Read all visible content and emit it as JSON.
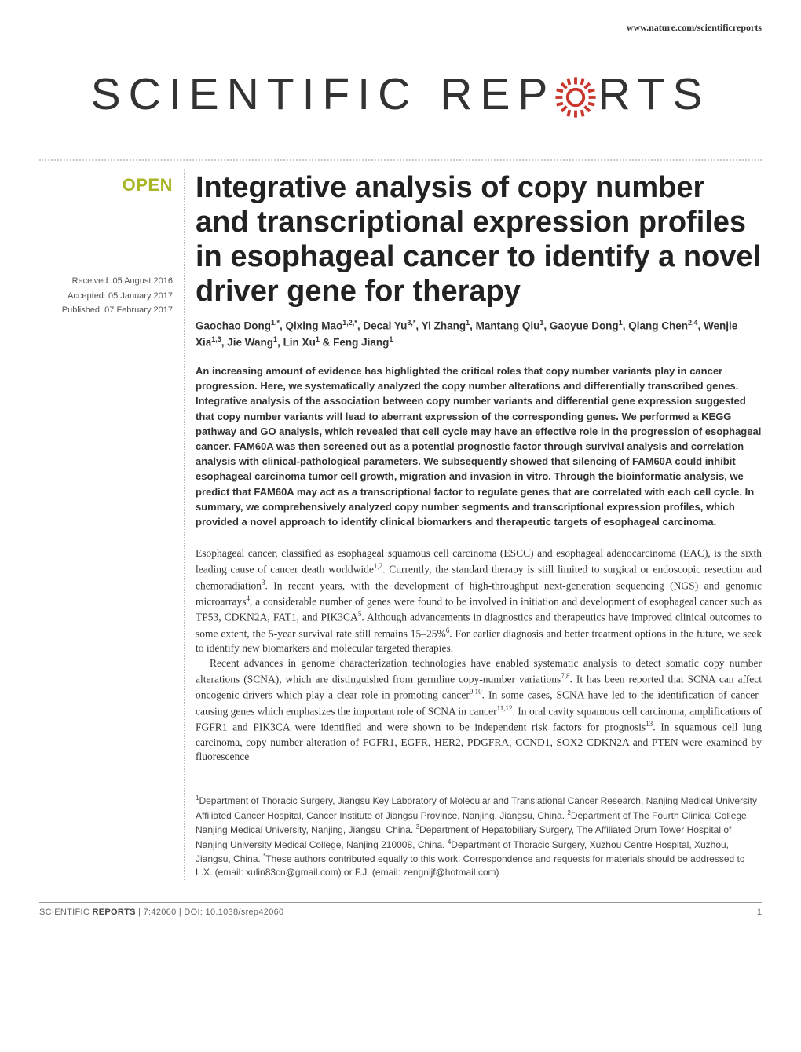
{
  "header": {
    "url": "www.nature.com/scientificreports"
  },
  "brand": {
    "part1": "SCIENTIFIC",
    "part2": "REP",
    "part3": "RTS",
    "gear_color": "#c8362c",
    "gear_size": 60
  },
  "badge": {
    "text": "OPEN",
    "color": "#a8b628"
  },
  "meta": {
    "received": "Received: 05 August 2016",
    "accepted": "Accepted: 05 January 2017",
    "published": "Published: 07 February 2017"
  },
  "title": "Integrative analysis of copy number and transcriptional expression profiles in esophageal cancer to identify a novel driver gene for therapy",
  "authors_html": "Gaochao Dong<sup>1,*</sup>, Qixing Mao<sup>1,2,*</sup>, Decai Yu<sup>3,*</sup>, Yi Zhang<sup>1</sup>, Mantang Qiu<sup>1</sup>, Gaoyue Dong<sup>1</sup>, Qiang Chen<sup>2,4</sup>, Wenjie Xia<sup>1,3</sup>, Jie Wang<sup>1</sup>, Lin Xu<sup>1</sup> & Feng Jiang<sup>1</sup>",
  "abstract": "An increasing amount of evidence has highlighted the critical roles that copy number variants play in cancer progression. Here, we systematically analyzed the copy number alterations and differentially transcribed genes. Integrative analysis of the association between copy number variants and differential gene expression suggested that copy number variants will lead to aberrant expression of the corresponding genes. We performed a KEGG pathway and GO analysis, which revealed that cell cycle may have an effective role in the progression of esophageal cancer. FAM60A was then screened out as a potential prognostic factor through survival analysis and correlation analysis with clinical-pathological parameters. We subsequently showed that silencing of FAM60A could inhibit esophageal carcinoma tumor cell growth, migration and invasion in vitro. Through the bioinformatic analysis, we predict that FAM60A may act as a transcriptional factor to regulate genes that are correlated with each cell cycle. In summary, we comprehensively analyzed copy number segments and transcriptional expression profiles, which provided a novel approach to identify clinical biomarkers and therapeutic targets of esophageal carcinoma.",
  "body": {
    "p1": "Esophageal cancer, classified as esophageal squamous cell carcinoma (ESCC) and esophageal adenocarcinoma (EAC), is the sixth leading cause of cancer death worldwide<sup>1,2</sup>. Currently, the standard therapy is still limited to surgical or endoscopic resection and chemoradiation<sup>3</sup>. In recent years, with the development of high-throughput next-generation sequencing (NGS) and genomic microarrays<sup>4</sup>, a considerable number of genes were found to be involved in initiation and development of esophageal cancer such as TP53, CDKN2A, FAT1, and PIK3CA<sup>5</sup>. Although advancements in diagnostics and therapeutics have improved clinical outcomes to some extent, the 5-year survival rate still remains 15–25%<sup>6</sup>. For earlier diagnosis and better treatment options in the future, we seek to identify new biomarkers and molecular targeted therapies.",
    "p2": "Recent advances in genome characterization technologies have enabled systematic analysis to detect somatic copy number alterations (SCNA), which are distinguished from germline copy-number variations<sup>7,8</sup>. It has been reported that SCNA can affect oncogenic drivers which play a clear role in promoting cancer<sup>9,10</sup>. In some cases, SCNA have led to the identification of cancer-causing genes which emphasizes the important role of SCNA in cancer<sup>11,12</sup>. In oral cavity squamous cell carcinoma, amplifications of FGFR1 and PIK3CA were identified and were shown to be independent risk factors for prognosis<sup>13</sup>. In squamous cell lung carcinoma, copy number alteration of FGFR1, EGFR, HER2, PDGFRA, CCND1, SOX2 CDKN2A and PTEN were examined by fluorescence"
  },
  "affiliations_html": "<sup>1</sup>Department of Thoracic Surgery, Jiangsu Key Laboratory of Molecular and Translational Cancer Research, Nanjing Medical University Affiliated Cancer Hospital, Cancer Institute of Jiangsu Province, Nanjing, Jiangsu, China. <sup>2</sup>Department of The Fourth Clinical College, Nanjing Medical University, Nanjing, Jiangsu, China. <sup>3</sup>Department of Hepatobiliary Surgery, The Affiliated Drum Tower Hospital of Nanjing University Medical College, Nanjing 210008, China. <sup>4</sup>Department of Thoracic Surgery, Xuzhou Centre Hospital, Xuzhou, Jiangsu, China. <sup>*</sup>These authors contributed equally to this work. Correspondence and requests for materials should be addressed to L.X. (email: xulin83cn@gmail.com) or F.J. (email: zengnljf@hotmail.com)",
  "footer": {
    "journal": "SCIENTIFIC",
    "journal_bold": "REPORTS",
    "citation": " | 7:42060 | DOI: 10.1038/srep42060",
    "page": "1"
  }
}
